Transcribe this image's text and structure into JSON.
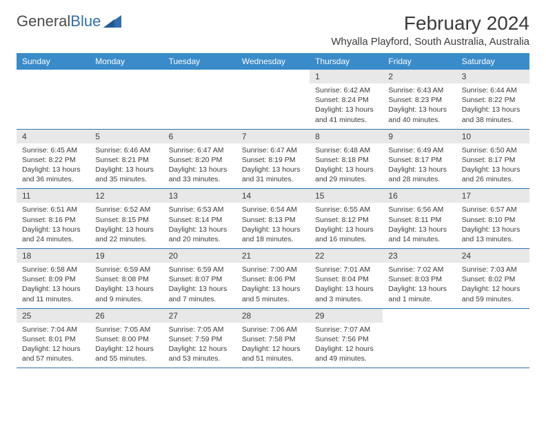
{
  "logo": {
    "text1": "General",
    "text2": "Blue"
  },
  "title": "February 2024",
  "location": "Whyalla Playford, South Australia, Australia",
  "day_headers": [
    "Sunday",
    "Monday",
    "Tuesday",
    "Wednesday",
    "Thursday",
    "Friday",
    "Saturday"
  ],
  "colors": {
    "header_bg": "#3a8bc9",
    "header_fg": "#ffffff",
    "date_bar_bg": "#e8e8e8",
    "border": "#2f6fb0",
    "text": "#3a3a3a",
    "brand_blue": "#2f6fb0"
  },
  "weeks": [
    [
      {
        "empty": true
      },
      {
        "empty": true
      },
      {
        "empty": true
      },
      {
        "empty": true
      },
      {
        "date": "1",
        "sunrise": "Sunrise: 6:42 AM",
        "sunset": "Sunset: 8:24 PM",
        "daylight1": "Daylight: 13 hours",
        "daylight2": "and 41 minutes."
      },
      {
        "date": "2",
        "sunrise": "Sunrise: 6:43 AM",
        "sunset": "Sunset: 8:23 PM",
        "daylight1": "Daylight: 13 hours",
        "daylight2": "and 40 minutes."
      },
      {
        "date": "3",
        "sunrise": "Sunrise: 6:44 AM",
        "sunset": "Sunset: 8:22 PM",
        "daylight1": "Daylight: 13 hours",
        "daylight2": "and 38 minutes."
      }
    ],
    [
      {
        "date": "4",
        "sunrise": "Sunrise: 6:45 AM",
        "sunset": "Sunset: 8:22 PM",
        "daylight1": "Daylight: 13 hours",
        "daylight2": "and 36 minutes."
      },
      {
        "date": "5",
        "sunrise": "Sunrise: 6:46 AM",
        "sunset": "Sunset: 8:21 PM",
        "daylight1": "Daylight: 13 hours",
        "daylight2": "and 35 minutes."
      },
      {
        "date": "6",
        "sunrise": "Sunrise: 6:47 AM",
        "sunset": "Sunset: 8:20 PM",
        "daylight1": "Daylight: 13 hours",
        "daylight2": "and 33 minutes."
      },
      {
        "date": "7",
        "sunrise": "Sunrise: 6:47 AM",
        "sunset": "Sunset: 8:19 PM",
        "daylight1": "Daylight: 13 hours",
        "daylight2": "and 31 minutes."
      },
      {
        "date": "8",
        "sunrise": "Sunrise: 6:48 AM",
        "sunset": "Sunset: 8:18 PM",
        "daylight1": "Daylight: 13 hours",
        "daylight2": "and 29 minutes."
      },
      {
        "date": "9",
        "sunrise": "Sunrise: 6:49 AM",
        "sunset": "Sunset: 8:17 PM",
        "daylight1": "Daylight: 13 hours",
        "daylight2": "and 28 minutes."
      },
      {
        "date": "10",
        "sunrise": "Sunrise: 6:50 AM",
        "sunset": "Sunset: 8:17 PM",
        "daylight1": "Daylight: 13 hours",
        "daylight2": "and 26 minutes."
      }
    ],
    [
      {
        "date": "11",
        "sunrise": "Sunrise: 6:51 AM",
        "sunset": "Sunset: 8:16 PM",
        "daylight1": "Daylight: 13 hours",
        "daylight2": "and 24 minutes."
      },
      {
        "date": "12",
        "sunrise": "Sunrise: 6:52 AM",
        "sunset": "Sunset: 8:15 PM",
        "daylight1": "Daylight: 13 hours",
        "daylight2": "and 22 minutes."
      },
      {
        "date": "13",
        "sunrise": "Sunrise: 6:53 AM",
        "sunset": "Sunset: 8:14 PM",
        "daylight1": "Daylight: 13 hours",
        "daylight2": "and 20 minutes."
      },
      {
        "date": "14",
        "sunrise": "Sunrise: 6:54 AM",
        "sunset": "Sunset: 8:13 PM",
        "daylight1": "Daylight: 13 hours",
        "daylight2": "and 18 minutes."
      },
      {
        "date": "15",
        "sunrise": "Sunrise: 6:55 AM",
        "sunset": "Sunset: 8:12 PM",
        "daylight1": "Daylight: 13 hours",
        "daylight2": "and 16 minutes."
      },
      {
        "date": "16",
        "sunrise": "Sunrise: 6:56 AM",
        "sunset": "Sunset: 8:11 PM",
        "daylight1": "Daylight: 13 hours",
        "daylight2": "and 14 minutes."
      },
      {
        "date": "17",
        "sunrise": "Sunrise: 6:57 AM",
        "sunset": "Sunset: 8:10 PM",
        "daylight1": "Daylight: 13 hours",
        "daylight2": "and 13 minutes."
      }
    ],
    [
      {
        "date": "18",
        "sunrise": "Sunrise: 6:58 AM",
        "sunset": "Sunset: 8:09 PM",
        "daylight1": "Daylight: 13 hours",
        "daylight2": "and 11 minutes."
      },
      {
        "date": "19",
        "sunrise": "Sunrise: 6:59 AM",
        "sunset": "Sunset: 8:08 PM",
        "daylight1": "Daylight: 13 hours",
        "daylight2": "and 9 minutes."
      },
      {
        "date": "20",
        "sunrise": "Sunrise: 6:59 AM",
        "sunset": "Sunset: 8:07 PM",
        "daylight1": "Daylight: 13 hours",
        "daylight2": "and 7 minutes."
      },
      {
        "date": "21",
        "sunrise": "Sunrise: 7:00 AM",
        "sunset": "Sunset: 8:06 PM",
        "daylight1": "Daylight: 13 hours",
        "daylight2": "and 5 minutes."
      },
      {
        "date": "22",
        "sunrise": "Sunrise: 7:01 AM",
        "sunset": "Sunset: 8:04 PM",
        "daylight1": "Daylight: 13 hours",
        "daylight2": "and 3 minutes."
      },
      {
        "date": "23",
        "sunrise": "Sunrise: 7:02 AM",
        "sunset": "Sunset: 8:03 PM",
        "daylight1": "Daylight: 13 hours",
        "daylight2": "and 1 minute."
      },
      {
        "date": "24",
        "sunrise": "Sunrise: 7:03 AM",
        "sunset": "Sunset: 8:02 PM",
        "daylight1": "Daylight: 12 hours",
        "daylight2": "and 59 minutes."
      }
    ],
    [
      {
        "date": "25",
        "sunrise": "Sunrise: 7:04 AM",
        "sunset": "Sunset: 8:01 PM",
        "daylight1": "Daylight: 12 hours",
        "daylight2": "and 57 minutes."
      },
      {
        "date": "26",
        "sunrise": "Sunrise: 7:05 AM",
        "sunset": "Sunset: 8:00 PM",
        "daylight1": "Daylight: 12 hours",
        "daylight2": "and 55 minutes."
      },
      {
        "date": "27",
        "sunrise": "Sunrise: 7:05 AM",
        "sunset": "Sunset: 7:59 PM",
        "daylight1": "Daylight: 12 hours",
        "daylight2": "and 53 minutes."
      },
      {
        "date": "28",
        "sunrise": "Sunrise: 7:06 AM",
        "sunset": "Sunset: 7:58 PM",
        "daylight1": "Daylight: 12 hours",
        "daylight2": "and 51 minutes."
      },
      {
        "date": "29",
        "sunrise": "Sunrise: 7:07 AM",
        "sunset": "Sunset: 7:56 PM",
        "daylight1": "Daylight: 12 hours",
        "daylight2": "and 49 minutes."
      },
      {
        "empty": true
      },
      {
        "empty": true
      }
    ]
  ]
}
